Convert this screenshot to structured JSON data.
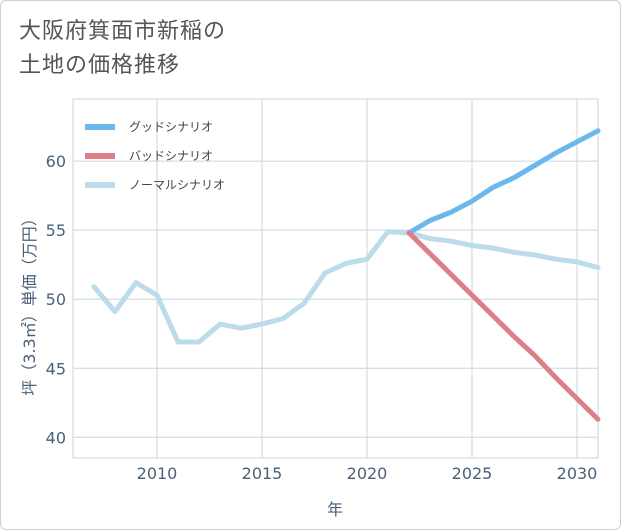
{
  "title_lines": [
    "大阪府箕面市新稲の",
    "土地の価格推移"
  ],
  "chart_data": {
    "type": "line",
    "xlabel": "年",
    "ylabel": "坪（3.3㎡）単価（万円）",
    "xlim": [
      2006,
      2031
    ],
    "ylim": [
      38.5,
      64.5
    ],
    "xticks": [
      2010,
      2015,
      2020,
      2025,
      2030
    ],
    "yticks": [
      40,
      45,
      50,
      55,
      60
    ],
    "grid": true,
    "legend_position": "top-left",
    "series": [
      {
        "name": "グッドシナリオ",
        "color": "#6bb8ec",
        "x": [
          2022,
          2023,
          2024,
          2025,
          2026,
          2027,
          2028,
          2029,
          2030,
          2031
        ],
        "y": [
          54.8,
          55.7,
          56.3,
          57.1,
          58.1,
          58.8,
          59.7,
          60.6,
          61.4,
          62.2
        ]
      },
      {
        "name": "バッドシナリオ",
        "color": "#dc8088",
        "x": [
          2022,
          2023,
          2024,
          2025,
          2026,
          2027,
          2028,
          2029,
          2030,
          2031
        ],
        "y": [
          54.8,
          53.3,
          51.8,
          50.3,
          48.8,
          47.3,
          45.9,
          44.3,
          42.8,
          41.3
        ]
      },
      {
        "name": "ノーマルシナリオ",
        "color": "#bcdcec",
        "x": [
          2007,
          2008,
          2009,
          2010,
          2011,
          2012,
          2013,
          2014,
          2015,
          2016,
          2017,
          2018,
          2019,
          2020,
          2021,
          2022,
          2023,
          2024,
          2025,
          2026,
          2027,
          2028,
          2029,
          2030,
          2031
        ],
        "y": [
          50.9,
          49.1,
          51.2,
          50.3,
          46.9,
          46.9,
          48.2,
          47.9,
          48.2,
          48.6,
          49.7,
          51.9,
          52.6,
          52.9,
          54.9,
          54.8,
          54.4,
          54.2,
          53.9,
          53.7,
          53.4,
          53.2,
          52.9,
          52.7,
          52.3
        ]
      }
    ]
  }
}
